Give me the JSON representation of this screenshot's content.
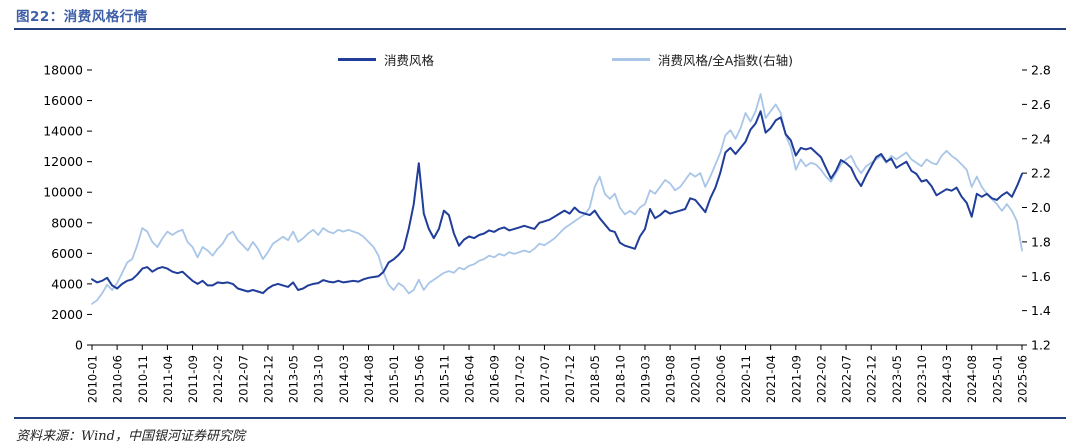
{
  "page": {
    "title": "图22：消费风格行情",
    "source_note": "资料来源：Wind，中国银河证券研究院"
  },
  "colors": {
    "title_blue": "#3E5FA8",
    "rule_navy": "#24407E",
    "series_dark": "#1F3D99",
    "series_light": "#A9C6E8",
    "axis_text": "#000000"
  },
  "chart_data": {
    "type": "line",
    "title": "图22：消费风格行情",
    "x_unit": "month",
    "x_start": "2010-01",
    "x_end": "2025-06",
    "x_tick_every": 5,
    "x_tick_labels": [
      "2010-01",
      "2010-06",
      "2010-11",
      "2011-04",
      "2011-09",
      "2012-02",
      "2012-07",
      "2012-12",
      "2013-05",
      "2013-10",
      "2014-03",
      "2014-08",
      "2015-01",
      "2015-06",
      "2015-11",
      "2016-04",
      "2016-09",
      "2017-02",
      "2017-07",
      "2017-12",
      "2018-05",
      "2018-10",
      "2019-03",
      "2019-08",
      "2020-01",
      "2020-06",
      "2020-11",
      "2021-04",
      "2021-09",
      "2022-02",
      "2022-07",
      "2022-12",
      "2023-05",
      "2023-10",
      "2024-03",
      "2024-08",
      "2025-01",
      "2025-06"
    ],
    "left_axis": {
      "min": 0,
      "max": 18000,
      "step": 2000,
      "tick_labels": [
        "0",
        "2000",
        "4000",
        "6000",
        "8000",
        "10000",
        "12000",
        "14000",
        "16000",
        "18000"
      ]
    },
    "right_axis": {
      "min": 1.2,
      "max": 2.8,
      "step": 0.2,
      "tick_labels": [
        "1.2",
        "1.4",
        "1.6",
        "1.8",
        "2.0",
        "2.2",
        "2.4",
        "2.6",
        "2.8"
      ]
    },
    "grid": false,
    "legend_position": "top",
    "legend": [
      {
        "label": "消费风格",
        "color": "#1F3D99",
        "axis": "left"
      },
      {
        "label": "消费风格/全A指数(右轴)",
        "color": "#A9C6E8",
        "axis": "right"
      }
    ],
    "series": [
      {
        "name": "消费风格",
        "axis": "left",
        "color": "#1F3D99",
        "values": [
          4300,
          4100,
          4200,
          4400,
          3900,
          3700,
          4000,
          4200,
          4300,
          4600,
          5000,
          5100,
          4800,
          5000,
          5100,
          5000,
          4800,
          4700,
          4800,
          4500,
          4200,
          4000,
          4200,
          3900,
          3900,
          4100,
          4050,
          4100,
          4000,
          3700,
          3600,
          3500,
          3600,
          3500,
          3400,
          3700,
          3900,
          4000,
          3900,
          3800,
          4100,
          3600,
          3700,
          3900,
          4000,
          4050,
          4250,
          4150,
          4100,
          4200,
          4100,
          4150,
          4200,
          4150,
          4300,
          4400,
          4450,
          4500,
          4800,
          5400,
          5600,
          5900,
          6300,
          7600,
          9200,
          11900,
          8600,
          7600,
          7000,
          7600,
          8800,
          8500,
          7300,
          6500,
          6900,
          7100,
          7000,
          7200,
          7300,
          7500,
          7400,
          7600,
          7700,
          7500,
          7600,
          7700,
          7800,
          7700,
          7600,
          8000,
          8100,
          8200,
          8400,
          8600,
          8800,
          8600,
          9000,
          8700,
          8600,
          8500,
          8800,
          8300,
          7900,
          7500,
          7400,
          6700,
          6500,
          6400,
          6300,
          7100,
          7600,
          8900,
          8300,
          8500,
          8800,
          8600,
          8700,
          8800,
          8900,
          9600,
          9500,
          9100,
          8700,
          9600,
          10300,
          11300,
          12600,
          12900,
          12500,
          12900,
          13300,
          14100,
          14500,
          15300,
          13900,
          14200,
          14700,
          14900,
          13800,
          13400,
          12400,
          12900,
          12800,
          12900,
          12600,
          12300,
          11600,
          10900,
          11400,
          12100,
          11900,
          11600,
          10900,
          10400,
          11100,
          11700,
          12300,
          12500,
          12000,
          12200,
          11600,
          11800,
          12000,
          11400,
          11200,
          10700,
          10800,
          10400,
          9800,
          10000,
          10200,
          10100,
          10300,
          9700,
          9300,
          8400,
          9900,
          9700,
          9900,
          9600,
          9500,
          9800,
          10000,
          9700,
          10400,
          11200
        ]
      },
      {
        "name": "消费风格/全A指数(右轴)",
        "axis": "right",
        "color": "#A9C6E8",
        "values": [
          1.44,
          1.46,
          1.5,
          1.55,
          1.52,
          1.56,
          1.62,
          1.68,
          1.7,
          1.78,
          1.88,
          1.86,
          1.8,
          1.77,
          1.82,
          1.86,
          1.84,
          1.86,
          1.87,
          1.8,
          1.77,
          1.71,
          1.77,
          1.75,
          1.72,
          1.76,
          1.79,
          1.84,
          1.86,
          1.81,
          1.78,
          1.75,
          1.8,
          1.76,
          1.7,
          1.74,
          1.79,
          1.81,
          1.83,
          1.81,
          1.86,
          1.8,
          1.82,
          1.85,
          1.87,
          1.84,
          1.88,
          1.86,
          1.85,
          1.87,
          1.86,
          1.87,
          1.86,
          1.85,
          1.83,
          1.8,
          1.77,
          1.72,
          1.62,
          1.55,
          1.52,
          1.56,
          1.54,
          1.5,
          1.52,
          1.58,
          1.52,
          1.56,
          1.58,
          1.6,
          1.62,
          1.63,
          1.62,
          1.65,
          1.64,
          1.66,
          1.67,
          1.69,
          1.7,
          1.72,
          1.71,
          1.73,
          1.72,
          1.74,
          1.73,
          1.74,
          1.75,
          1.74,
          1.76,
          1.79,
          1.78,
          1.8,
          1.82,
          1.85,
          1.88,
          1.9,
          1.92,
          1.94,
          1.96,
          2.0,
          2.12,
          2.18,
          2.08,
          2.05,
          2.08,
          2.0,
          1.96,
          1.98,
          1.96,
          2.0,
          2.02,
          2.1,
          2.08,
          2.12,
          2.16,
          2.14,
          2.1,
          2.12,
          2.16,
          2.2,
          2.18,
          2.2,
          2.12,
          2.18,
          2.25,
          2.32,
          2.42,
          2.45,
          2.4,
          2.46,
          2.55,
          2.5,
          2.56,
          2.66,
          2.52,
          2.56,
          2.6,
          2.55,
          2.42,
          2.35,
          2.22,
          2.28,
          2.24,
          2.26,
          2.25,
          2.22,
          2.18,
          2.15,
          2.2,
          2.25,
          2.28,
          2.3,
          2.24,
          2.2,
          2.24,
          2.26,
          2.28,
          2.3,
          2.26,
          2.3,
          2.28,
          2.3,
          2.32,
          2.28,
          2.26,
          2.24,
          2.28,
          2.26,
          2.25,
          2.3,
          2.33,
          2.3,
          2.28,
          2.25,
          2.22,
          2.12,
          2.18,
          2.12,
          2.08,
          2.05,
          2.02,
          1.98,
          2.02,
          1.98,
          1.92,
          1.75
        ]
      }
    ]
  }
}
